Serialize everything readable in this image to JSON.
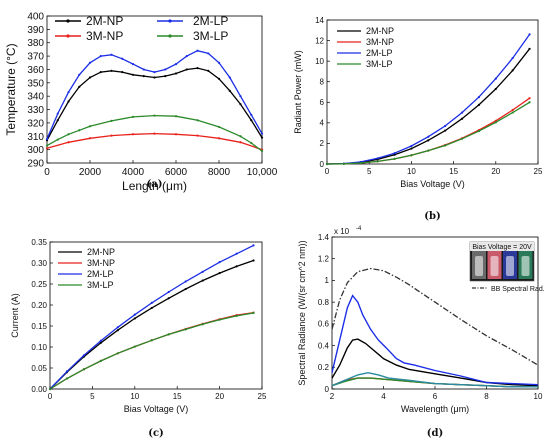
{
  "chart_data": [
    {
      "panel": "(a)",
      "type": "line",
      "xlabel": "Length (μm)",
      "ylabel": "Temperature (°C)",
      "xlim": [
        0,
        10000
      ],
      "ylim": [
        290,
        400
      ],
      "xticks": [
        0,
        2000,
        4000,
        6000,
        8000,
        10000
      ],
      "xtick_labels": [
        "0",
        "2000",
        "4000",
        "6000",
        "8000",
        "10,000"
      ],
      "yticks": [
        290,
        300,
        310,
        320,
        330,
        340,
        350,
        360,
        370,
        380,
        390,
        400
      ],
      "legend_position": "top",
      "series": [
        {
          "name": "2M-NP",
          "color": "#000000",
          "x": [
            0,
            500,
            1000,
            1500,
            2000,
            2500,
            3000,
            3500,
            4000,
            4500,
            5000,
            5500,
            6000,
            6500,
            7000,
            7500,
            8000,
            8500,
            9000,
            9500,
            10000
          ],
          "y": [
            307,
            322,
            336,
            347,
            354,
            358,
            359,
            358,
            356,
            355,
            354,
            355,
            357,
            360,
            361,
            359,
            353,
            344,
            334,
            322,
            309
          ]
        },
        {
          "name": "3M-NP",
          "color": "#e8211b",
          "x": [
            0,
            1000,
            2000,
            3000,
            4000,
            5000,
            6000,
            7000,
            8000,
            9000,
            10000
          ],
          "y": [
            301,
            305.5,
            308.5,
            310.5,
            311.5,
            312,
            311.5,
            310.5,
            308.5,
            305.5,
            300
          ]
        },
        {
          "name": "2M-LP",
          "color": "#1b2ee6",
          "x": [
            0,
            500,
            1000,
            1500,
            2000,
            2500,
            3000,
            3500,
            4000,
            4500,
            5000,
            5500,
            6000,
            6500,
            7000,
            7500,
            8000,
            8500,
            9000,
            9500,
            10000
          ],
          "y": [
            308,
            327,
            343,
            356,
            365,
            370,
            371,
            368,
            364,
            360,
            358,
            360,
            364,
            370,
            374,
            372,
            365,
            354,
            340,
            326,
            312
          ]
        },
        {
          "name": "3M-LP",
          "color": "#2a8a2a",
          "x": [
            0,
            500,
            1000,
            1500,
            2000,
            3000,
            4000,
            5000,
            6000,
            7000,
            8000,
            9000,
            9500,
            10000
          ],
          "y": [
            303,
            307.5,
            311.5,
            314.5,
            317.5,
            321.5,
            324.5,
            325.5,
            325,
            322,
            317,
            310,
            305,
            299
          ]
        }
      ]
    },
    {
      "panel": "(b)",
      "type": "line",
      "xlabel": "Bias Voltage (V)",
      "ylabel": "Radiant Power (mW)",
      "xlim": [
        0,
        25
      ],
      "ylim": [
        0,
        14
      ],
      "xticks": [
        0,
        5,
        10,
        15,
        20,
        25
      ],
      "yticks": [
        0,
        2,
        4,
        6,
        8,
        10,
        12,
        14
      ],
      "legend_position": "top-left",
      "series": [
        {
          "name": "2M-NP",
          "color": "#000000",
          "x": [
            0,
            2,
            4,
            6,
            8,
            10,
            12,
            14,
            16,
            18,
            20,
            22,
            24
          ],
          "y": [
            0,
            0.03,
            0.16,
            0.45,
            0.9,
            1.5,
            2.3,
            3.25,
            4.4,
            5.75,
            7.3,
            9.1,
            11.2
          ]
        },
        {
          "name": "3M-NP",
          "color": "#e8211b",
          "x": [
            0,
            2,
            4,
            6,
            8,
            10,
            12,
            14,
            16,
            18,
            20,
            22,
            24
          ],
          "y": [
            0,
            0.02,
            0.1,
            0.25,
            0.5,
            0.85,
            1.3,
            1.85,
            2.5,
            3.3,
            4.2,
            5.25,
            6.4
          ]
        },
        {
          "name": "2M-LP",
          "color": "#1b2ee6",
          "x": [
            0,
            2,
            4,
            6,
            8,
            10,
            12,
            14,
            16,
            18,
            20,
            22,
            24
          ],
          "y": [
            0,
            0.04,
            0.2,
            0.55,
            1.05,
            1.75,
            2.65,
            3.7,
            5.0,
            6.5,
            8.3,
            10.3,
            12.6
          ]
        },
        {
          "name": "3M-LP",
          "color": "#2a8a2a",
          "x": [
            0,
            2,
            4,
            6,
            8,
            10,
            12,
            14,
            16,
            18,
            20,
            22,
            24
          ],
          "y": [
            0,
            0.02,
            0.1,
            0.25,
            0.5,
            0.85,
            1.3,
            1.8,
            2.45,
            3.2,
            4.05,
            5.0,
            6.0
          ]
        }
      ]
    },
    {
      "panel": "(c)",
      "type": "line",
      "xlabel": "Bias Voltage (V)",
      "ylabel": "Current (A)",
      "xlim": [
        0,
        25
      ],
      "ylim": [
        0,
        0.35
      ],
      "xticks": [
        0,
        5,
        10,
        15,
        20,
        25
      ],
      "yticks": [
        0,
        0.05,
        0.1,
        0.15,
        0.2,
        0.25,
        0.3,
        0.35
      ],
      "ytick_labels": [
        "0.00",
        "0.05",
        "0.10",
        "0.15",
        "0.20",
        "0.25",
        "0.30",
        "0.35"
      ],
      "legend_position": "top-left",
      "series": [
        {
          "name": "2M-NP",
          "color": "#000000",
          "x": [
            0,
            2,
            4,
            6,
            8,
            10,
            12,
            14,
            16,
            18,
            20,
            22,
            24
          ],
          "y": [
            0,
            0.04,
            0.077,
            0.11,
            0.14,
            0.168,
            0.193,
            0.216,
            0.238,
            0.258,
            0.276,
            0.292,
            0.306
          ]
        },
        {
          "name": "3M-NP",
          "color": "#e8211b",
          "x": [
            0,
            2,
            4,
            6,
            8,
            10,
            12,
            14,
            16,
            18,
            20,
            22,
            24
          ],
          "y": [
            0,
            0.025,
            0.047,
            0.067,
            0.085,
            0.101,
            0.116,
            0.13,
            0.143,
            0.155,
            0.166,
            0.176,
            0.182
          ]
        },
        {
          "name": "2M-LP",
          "color": "#1b2ee6",
          "x": [
            0,
            2,
            4,
            6,
            8,
            10,
            12,
            14,
            16,
            18,
            20,
            22,
            24
          ],
          "y": [
            0,
            0.042,
            0.08,
            0.115,
            0.147,
            0.177,
            0.205,
            0.231,
            0.256,
            0.279,
            0.302,
            0.322,
            0.342
          ]
        },
        {
          "name": "3M-LP",
          "color": "#2a8a2a",
          "x": [
            0,
            2,
            4,
            6,
            8,
            10,
            12,
            14,
            16,
            18,
            20,
            22,
            24
          ],
          "y": [
            0,
            0.025,
            0.047,
            0.067,
            0.085,
            0.101,
            0.116,
            0.13,
            0.142,
            0.154,
            0.165,
            0.174,
            0.181
          ]
        }
      ]
    },
    {
      "panel": "(d)",
      "type": "line",
      "xlabel": "Wavelength (μm)",
      "ylabel": "Spectral Radiance (W/(sr cm^2 nm))",
      "y_multiplier": "x 10",
      "y_multiplier_exp": "-4",
      "xlim": [
        2,
        10
      ],
      "ylim": [
        0,
        1.4
      ],
      "xticks": [
        2,
        4,
        6,
        8,
        10
      ],
      "yticks": [
        0,
        0.2,
        0.4,
        0.6,
        0.8,
        1.0,
        1.2,
        1.4
      ],
      "ytick_labels": [
        "0",
        "0.2",
        "0.4",
        "0.6",
        "0.8",
        "1",
        "1.2",
        "1.4"
      ],
      "inset_label": "Bias Voltage = 20V",
      "bb_legend": "BB Spectral Rad.",
      "series": [
        {
          "color": "#000000",
          "x": [
            2.0,
            2.3,
            2.6,
            2.8,
            3.0,
            3.3,
            3.6,
            4.0,
            4.5,
            5.0,
            6.0,
            7.0,
            8.0,
            9.0,
            10.0
          ],
          "y": [
            0.1,
            0.22,
            0.38,
            0.45,
            0.46,
            0.42,
            0.36,
            0.28,
            0.22,
            0.18,
            0.14,
            0.1,
            0.06,
            0.04,
            0.03
          ]
        },
        {
          "color": "#1b2ee6",
          "x": [
            2.0,
            2.3,
            2.6,
            2.8,
            3.0,
            3.2,
            3.5,
            3.8,
            4.1,
            4.5,
            4.8,
            5.2,
            6.0,
            7.0,
            8.0,
            9.0,
            10.0
          ],
          "y": [
            0.15,
            0.45,
            0.75,
            0.86,
            0.8,
            0.68,
            0.55,
            0.45,
            0.38,
            0.28,
            0.24,
            0.22,
            0.17,
            0.12,
            0.06,
            0.05,
            0.04
          ]
        },
        {
          "color": "#e8211b",
          "x": [
            2.0,
            2.5,
            3.0,
            3.5,
            4.0,
            5.0,
            6.0,
            7.0,
            8.0,
            9.0,
            10.0
          ],
          "y": [
            0.03,
            0.08,
            0.1,
            0.1,
            0.09,
            0.07,
            0.05,
            0.04,
            0.03,
            0.02,
            0.02
          ]
        },
        {
          "color": "#2a8a2a",
          "x": [
            2.0,
            2.5,
            3.0,
            3.5,
            4.0,
            5.0,
            6.0,
            7.0,
            8.0,
            9.0,
            10.0
          ],
          "y": [
            0.03,
            0.07,
            0.1,
            0.1,
            0.09,
            0.07,
            0.05,
            0.04,
            0.03,
            0.02,
            0.02
          ]
        },
        {
          "color": "#2a8aa0",
          "x": [
            2.0,
            2.5,
            3.0,
            3.4,
            3.8,
            4.2,
            5.0,
            6.0,
            7.0,
            8.0,
            9.0,
            10.0
          ],
          "y": [
            0.03,
            0.08,
            0.13,
            0.15,
            0.13,
            0.1,
            0.08,
            0.05,
            0.04,
            0.03,
            0.02,
            0.02
          ]
        },
        {
          "name": "BB Spectral Rad.",
          "color": "#333333",
          "dash": "dashdot",
          "x": [
            2.0,
            2.3,
            2.6,
            3.0,
            3.5,
            4.0,
            4.5,
            5.0,
            5.5,
            6.0,
            7.0,
            8.0,
            9.0,
            10.0
          ],
          "y": [
            0.55,
            0.82,
            0.98,
            1.08,
            1.11,
            1.09,
            1.03,
            0.96,
            0.88,
            0.8,
            0.64,
            0.49,
            0.36,
            0.22
          ]
        }
      ]
    }
  ]
}
